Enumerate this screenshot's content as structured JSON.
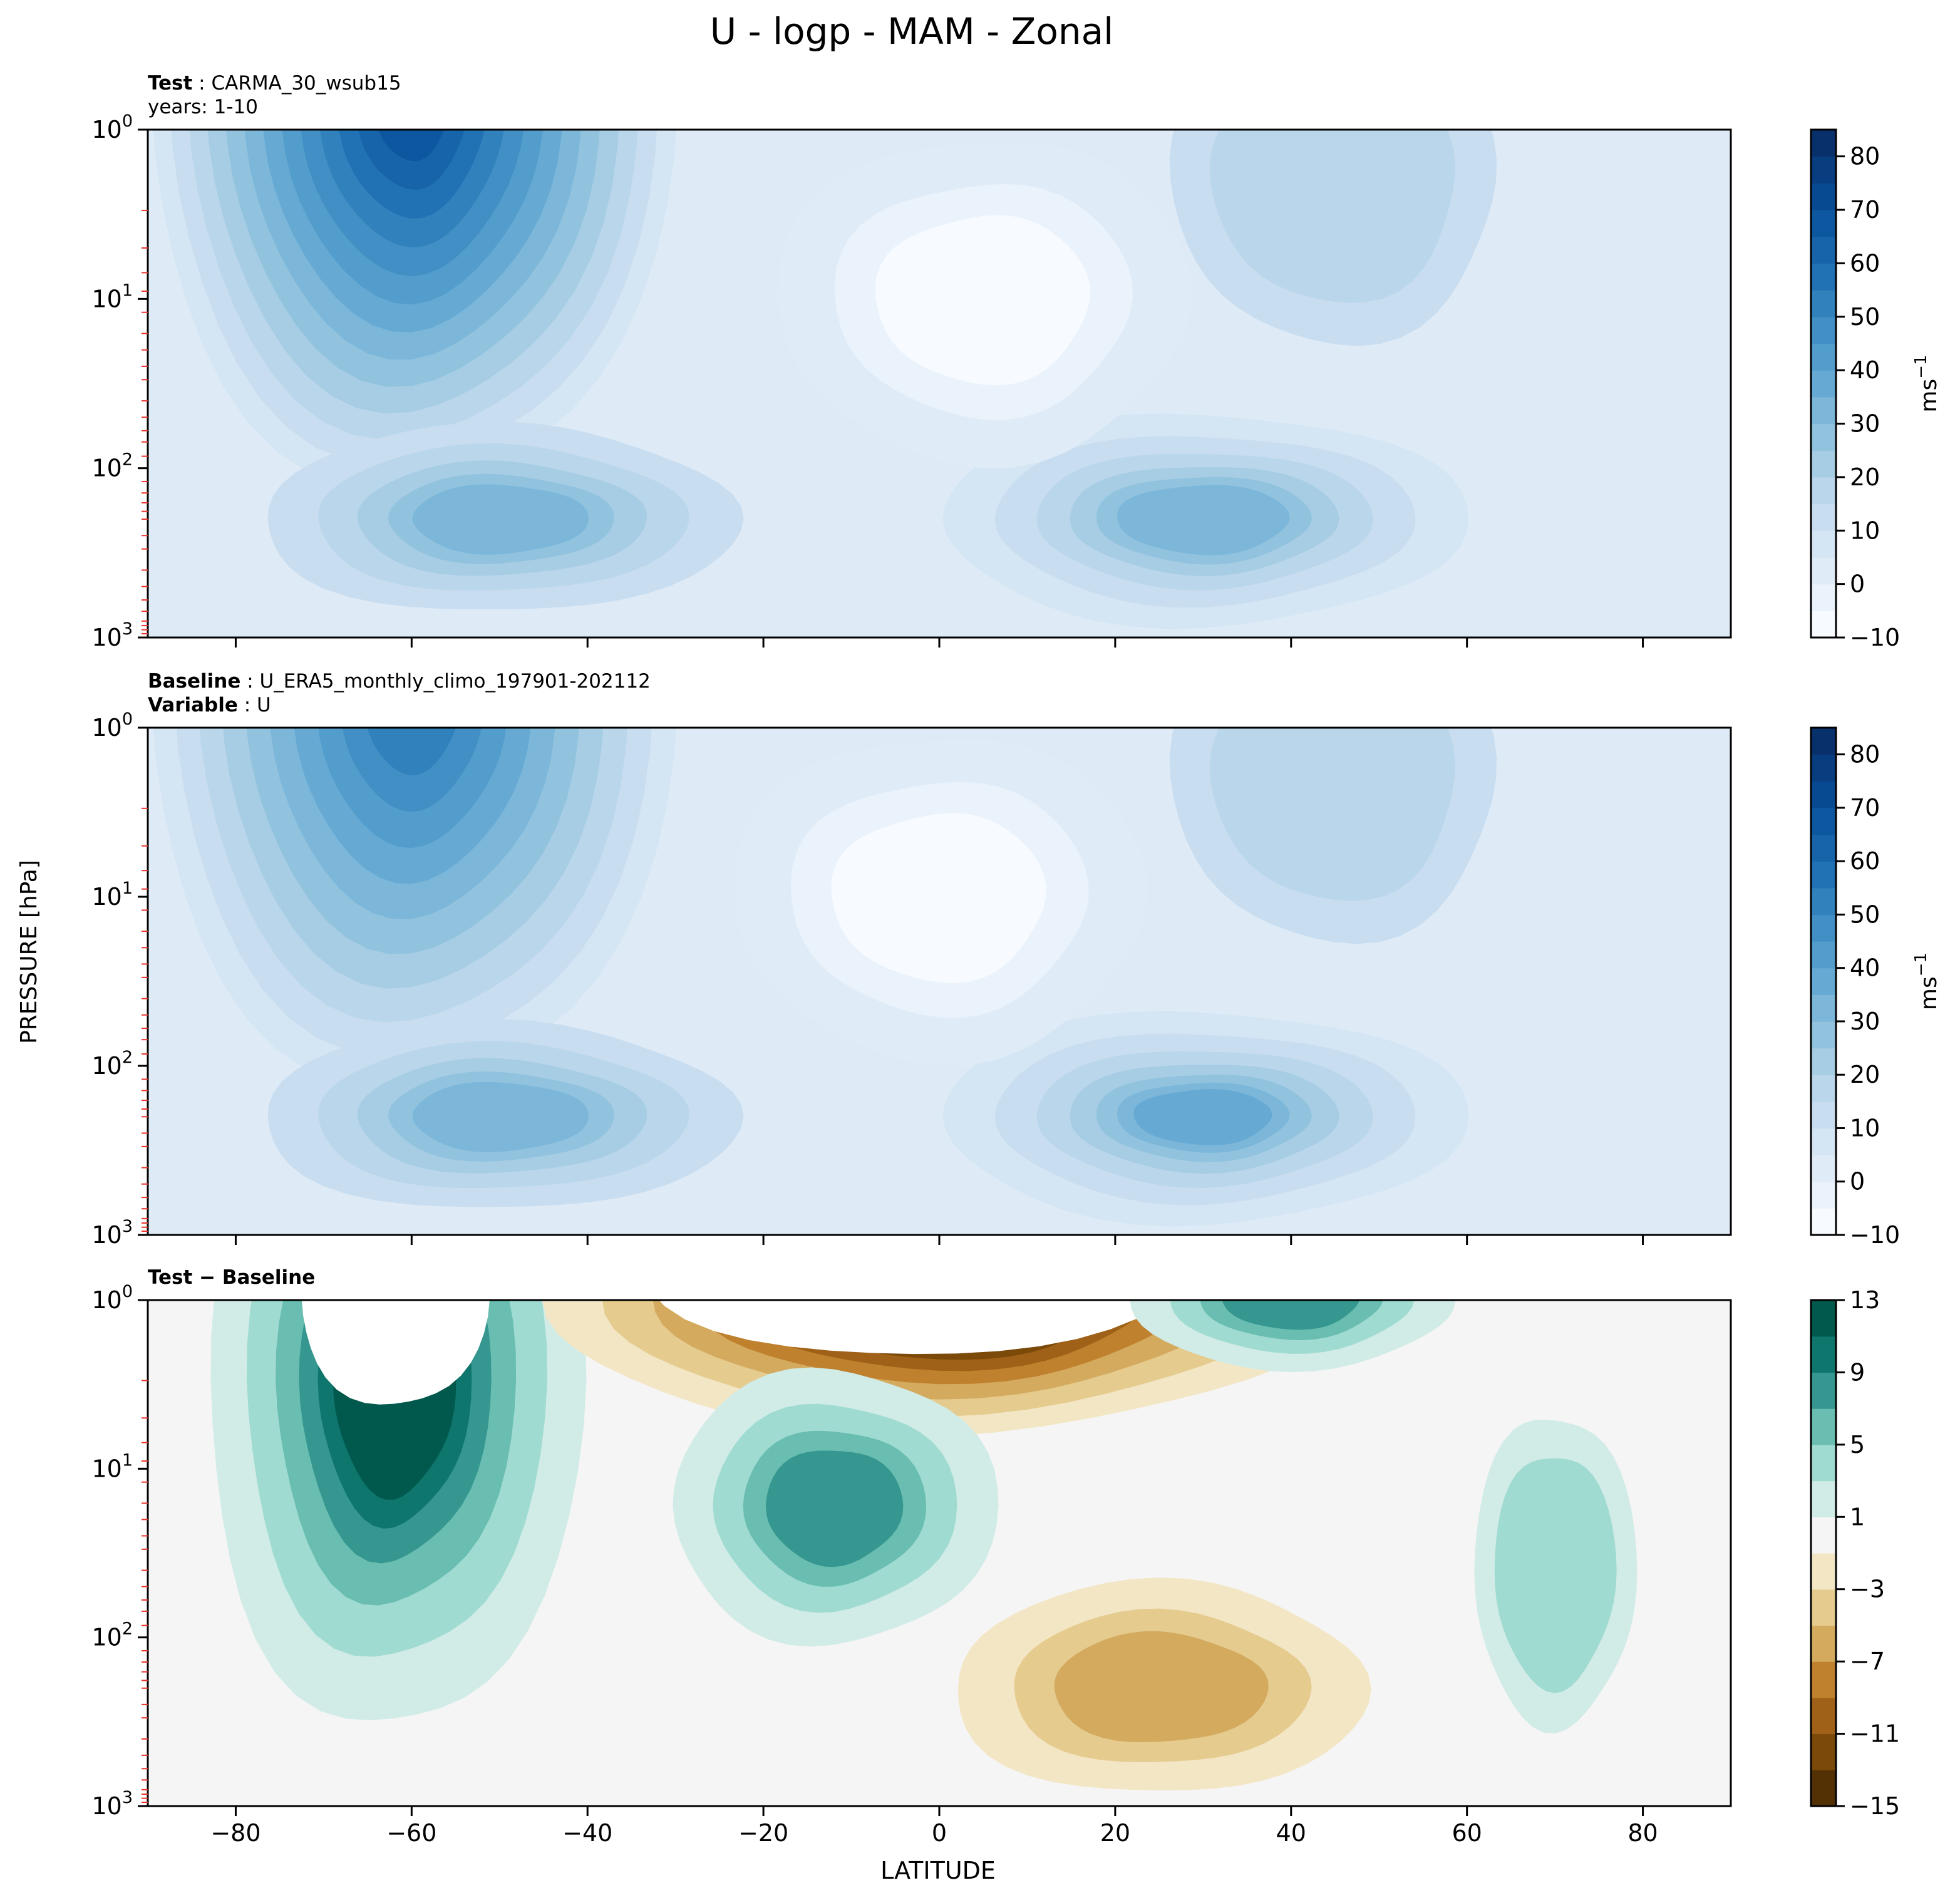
{
  "figure": {
    "title": "U - logp - MAM - Zonal",
    "xlabel": "LATITUDE",
    "ylabel": "PRESSURE [hPa]"
  },
  "chart_data": [
    {
      "type": "contour",
      "panel": "test",
      "header": [
        {
          "key": "Test",
          "value": "CARMA_30_wsub15"
        },
        {
          "key": "",
          "value": "years: 1-10"
        }
      ],
      "x": {
        "range": [
          -90,
          90
        ],
        "ticks": [
          -80,
          -60,
          -40,
          -20,
          0,
          20,
          40,
          60,
          80
        ]
      },
      "y": {
        "scale": "log",
        "inverted": true,
        "range": [
          1000,
          1
        ],
        "ticks": [
          {
            "base": "10",
            "exp": "0"
          },
          {
            "base": "10",
            "exp": "1"
          },
          {
            "base": "10",
            "exp": "2"
          },
          {
            "base": "10",
            "exp": "3"
          }
        ]
      },
      "colorbar": {
        "label": "ms",
        "label_exp": "−1",
        "ticks": [
          "80",
          "70",
          "60",
          "50",
          "40",
          "30",
          "20",
          "10",
          "0",
          "−10"
        ],
        "levels": [
          -10,
          -5,
          0,
          5,
          10,
          15,
          20,
          25,
          30,
          35,
          40,
          45,
          50,
          55,
          60,
          65,
          70,
          75,
          80,
          85
        ],
        "colormap": "Blues"
      },
      "features": [
        {
          "lat": -60,
          "plev": 1,
          "u": 70
        },
        {
          "lat": 30,
          "plev": 200,
          "u": 32
        },
        {
          "lat": -50,
          "plev": 200,
          "u": 30
        },
        {
          "lat": 5,
          "plev": 10,
          "u": -5
        }
      ]
    },
    {
      "type": "contour",
      "panel": "baseline",
      "header": [
        {
          "key": "Baseline",
          "value": "U_ERA5_monthly_climo_197901-202112"
        },
        {
          "key": "Variable",
          "value": "U"
        }
      ],
      "x": {
        "range": [
          -90,
          90
        ],
        "ticks": [
          -80,
          -60,
          -40,
          -20,
          0,
          20,
          40,
          60,
          80
        ]
      },
      "y": {
        "scale": "log",
        "inverted": true,
        "range": [
          1000,
          1
        ],
        "ticks": [
          {
            "base": "10",
            "exp": "0"
          },
          {
            "base": "10",
            "exp": "1"
          },
          {
            "base": "10",
            "exp": "2"
          },
          {
            "base": "10",
            "exp": "3"
          }
        ]
      },
      "colorbar": {
        "label": "ms",
        "label_exp": "−1",
        "ticks": [
          "80",
          "70",
          "60",
          "50",
          "40",
          "30",
          "20",
          "10",
          "0",
          "−10"
        ],
        "levels": [
          -10,
          -5,
          0,
          5,
          10,
          15,
          20,
          25,
          30,
          35,
          40,
          45,
          50,
          55,
          60,
          65,
          70,
          75,
          80,
          85
        ],
        "colormap": "Blues"
      },
      "features": [
        {
          "lat": -60,
          "plev": 1,
          "u": 55
        },
        {
          "lat": 30,
          "plev": 200,
          "u": 38
        },
        {
          "lat": -50,
          "plev": 200,
          "u": 30
        },
        {
          "lat": 0,
          "plev": 10,
          "u": -5
        }
      ]
    },
    {
      "type": "contour",
      "panel": "difference",
      "header": [
        {
          "key": "Test − Baseline",
          "value": ""
        }
      ],
      "x": {
        "range": [
          -90,
          90
        ],
        "ticks": [
          -80,
          -60,
          -40,
          -20,
          0,
          20,
          40,
          60,
          80
        ],
        "ticklabels": [
          "−80",
          "−60",
          "−40",
          "−20",
          "0",
          "20",
          "40",
          "60",
          "80"
        ]
      },
      "y": {
        "scale": "log",
        "inverted": true,
        "range": [
          1000,
          1
        ],
        "ticks": [
          {
            "base": "10",
            "exp": "0"
          },
          {
            "base": "10",
            "exp": "1"
          },
          {
            "base": "10",
            "exp": "2"
          },
          {
            "base": "10",
            "exp": "3"
          }
        ]
      },
      "colorbar": {
        "label": "",
        "ticks": [
          "13",
          "9",
          "5",
          "1",
          "−3",
          "−7",
          "−11",
          "−15"
        ],
        "levels": [
          -15,
          -13,
          -11,
          -9,
          -7,
          -5,
          -3,
          -1,
          1,
          3,
          5,
          7,
          9,
          11,
          13
        ],
        "colormap": "BrBG"
      },
      "features": [
        {
          "lat": -62,
          "plev": 3,
          "du": 13
        },
        {
          "lat": -62,
          "plev": 1,
          "du": 15
        },
        {
          "lat": 0,
          "plev": 1,
          "du": -15
        },
        {
          "lat": -12,
          "plev": 10,
          "du": 7
        },
        {
          "lat": 40,
          "plev": 1,
          "du": 7
        },
        {
          "lat": 25,
          "plev": 200,
          "du": -5
        },
        {
          "lat": 70,
          "plev": 40,
          "du": 4
        }
      ]
    }
  ]
}
